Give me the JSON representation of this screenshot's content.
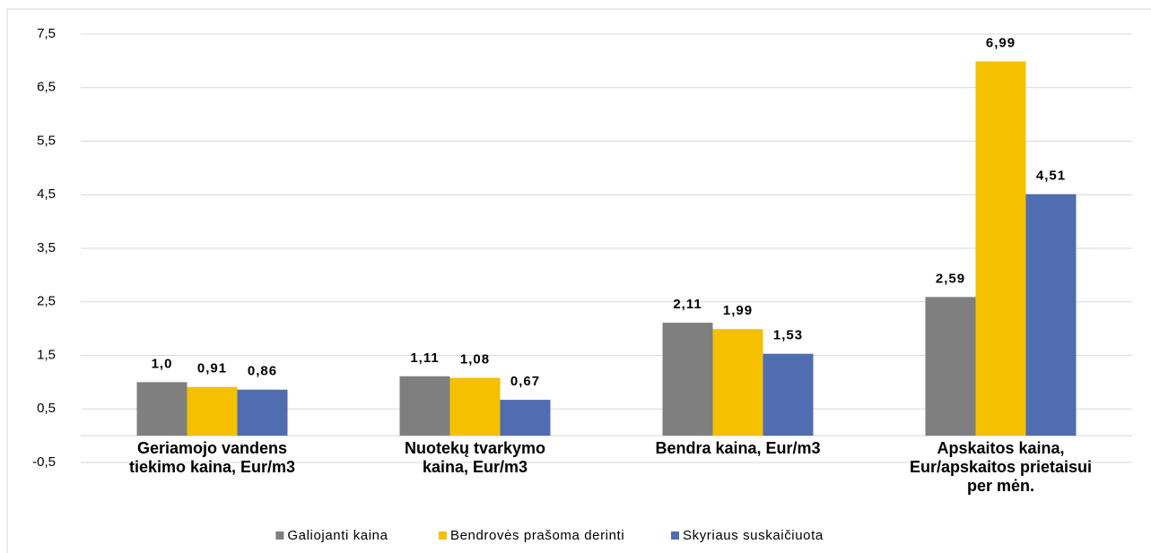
{
  "chart_data": {
    "type": "bar",
    "categories": [
      "Geriamojo vandens\ntiekimo kaina, Eur/m3",
      "Nuotekų tvarkymo\nkaina, Eur/m3",
      "Bendra kaina, Eur/m3",
      "Apskaitos kaina,\nEur/apskaitos prietaisui\nper mėn."
    ],
    "series": [
      {
        "name": "Galiojanti kaina",
        "color": "#7f7f7f",
        "values": [
          1,
          1.11,
          2.11,
          2.59
        ],
        "value_labels": [
          "1,0",
          "1,11",
          "2,11",
          "2,59"
        ]
      },
      {
        "name": "Bendrovės prašoma derinti",
        "color": "#f5c000",
        "values": [
          0.91,
          1.08,
          1.99,
          6.99
        ],
        "value_labels": [
          "0,91",
          "1,08",
          "1,99",
          "6,99"
        ]
      },
      {
        "name": "Skyriaus suskaičiuota",
        "color": "#4f6db0",
        "values": [
          0.86,
          0.67,
          1.53,
          4.51
        ],
        "value_labels": [
          "0,86",
          "0,67",
          "1,53",
          "4,51"
        ]
      }
    ],
    "ylim": [
      -0.5,
      7.5
    ],
    "yticks": [
      {
        "value": -0.5,
        "label": "-0,5"
      },
      {
        "value": 0.5,
        "label": "0,5"
      },
      {
        "value": 1.5,
        "label": "1,5"
      },
      {
        "value": 2.5,
        "label": "2,5"
      },
      {
        "value": 3.5,
        "label": "3,5"
      },
      {
        "value": 4.5,
        "label": "4,5"
      },
      {
        "value": 5.5,
        "label": "5,5"
      },
      {
        "value": 6.5,
        "label": "6,5"
      },
      {
        "value": 7.5,
        "label": "7,5"
      }
    ],
    "grid": true,
    "legend": "bottom"
  }
}
